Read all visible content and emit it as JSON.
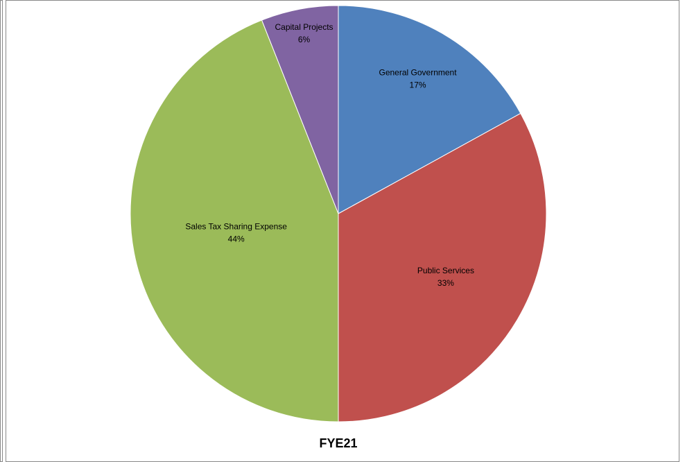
{
  "chart_data": {
    "type": "pie",
    "title": "FYE21",
    "categories": [
      "General Government",
      "Public Services",
      "Sales Tax Sharing Expense",
      "Capital Projects"
    ],
    "values": [
      17,
      33,
      44,
      6
    ],
    "value_labels": [
      "17%",
      "33%",
      "44%",
      "6%"
    ],
    "colors": [
      "#4f81bd",
      "#c0504d",
      "#9bbb59",
      "#8064a2"
    ]
  }
}
